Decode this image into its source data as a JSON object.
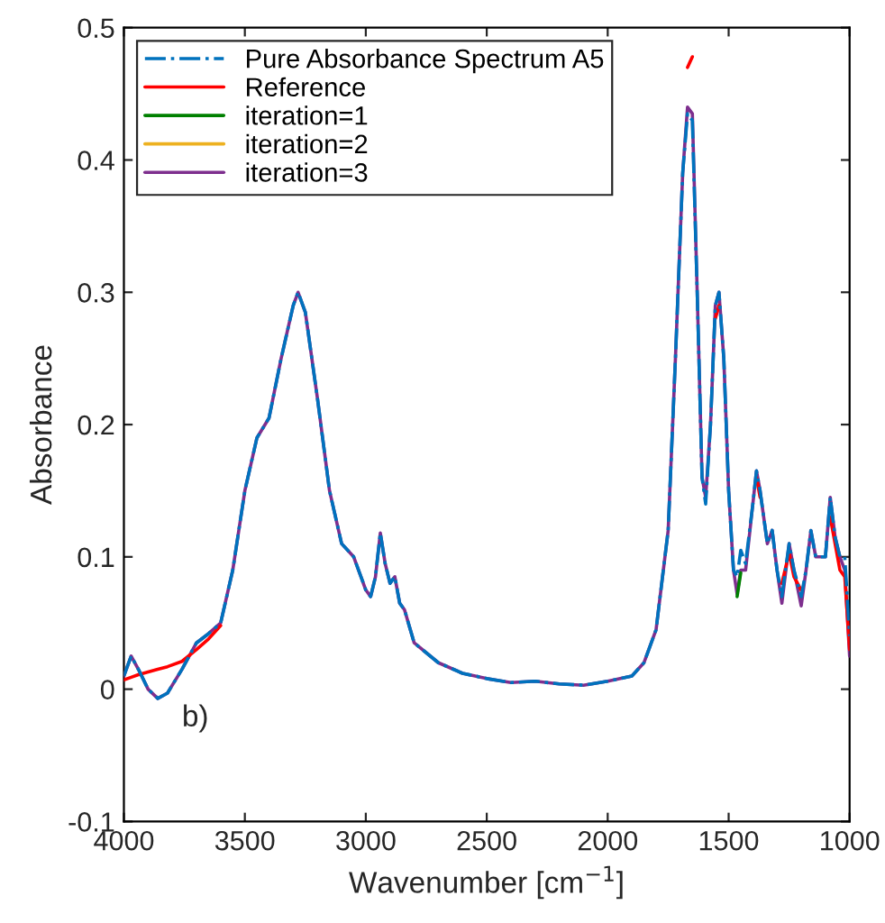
{
  "chart_data": {
    "type": "line",
    "xlabel": "Wavenumber [cm$^{−1}$]",
    "ylabel": "Absorbance",
    "annotations": [
      "b)"
    ],
    "xlim": [
      4000,
      1000
    ],
    "xticks": [
      4000,
      3500,
      3000,
      2500,
      2000,
      1500,
      1000
    ],
    "ylim": [
      -0.1,
      0.5
    ],
    "yticks": [
      -0.1,
      0,
      0.1,
      0.2,
      0.3,
      0.4,
      0.5
    ],
    "grid": false,
    "legend": "top left",
    "marker": "none",
    "x": [
      4000,
      3970,
      3940,
      3900,
      3860,
      3820,
      3760,
      3700,
      3650,
      3600,
      3550,
      3500,
      3450,
      3400,
      3350,
      3300,
      3280,
      3250,
      3200,
      3150,
      3100,
      3050,
      3000,
      2980,
      2960,
      2940,
      2920,
      2900,
      2880,
      2860,
      2840,
      2800,
      2700,
      2600,
      2500,
      2400,
      2300,
      2200,
      2100,
      2000,
      1900,
      1850,
      1800,
      1750,
      1720,
      1690,
      1670,
      1650,
      1630,
      1610,
      1595,
      1575,
      1555,
      1540,
      1520,
      1500,
      1480,
      1465,
      1450,
      1430,
      1400,
      1385,
      1370,
      1340,
      1320,
      1300,
      1280,
      1250,
      1230,
      1200,
      1180,
      1160,
      1140,
      1100,
      1080,
      1060,
      1040,
      1020,
      1000
    ],
    "series": [
      {
        "name": "Pure Absorbance Spectrum A5",
        "color": "#0072bd",
        "line_style": "dashdot",
        "values": [
          0.01,
          0.025,
          0.015,
          0.0,
          -0.007,
          -0.003,
          0.015,
          0.035,
          0.042,
          0.05,
          0.09,
          0.15,
          0.19,
          0.205,
          0.25,
          0.29,
          0.3,
          0.285,
          0.22,
          0.15,
          0.11,
          0.1,
          0.075,
          0.07,
          0.085,
          0.118,
          0.095,
          0.08,
          0.085,
          0.065,
          0.06,
          0.035,
          0.02,
          0.012,
          0.008,
          0.005,
          0.006,
          0.004,
          0.003,
          0.006,
          0.01,
          0.02,
          0.045,
          0.12,
          0.25,
          0.39,
          0.435,
          0.43,
          0.3,
          0.16,
          0.14,
          0.2,
          0.29,
          0.3,
          0.25,
          0.15,
          0.09,
          0.085,
          0.105,
          0.095,
          0.14,
          0.165,
          0.15,
          0.11,
          0.12,
          0.09,
          0.07,
          0.11,
          0.09,
          0.07,
          0.09,
          0.12,
          0.1,
          0.1,
          0.145,
          0.115,
          0.1,
          0.1,
          0.04
        ]
      },
      {
        "name": "Reference",
        "color": "#ff0000",
        "line_style": "solid",
        "values": [
          0.007,
          0.009,
          0.011,
          0.013,
          0.015,
          0.017,
          0.021,
          0.03,
          0.038,
          0.048,
          null,
          null,
          null,
          null,
          null,
          null,
          null,
          null,
          null,
          null,
          null,
          null,
          null,
          null,
          null,
          null,
          null,
          null,
          null,
          null,
          null,
          null,
          null,
          null,
          null,
          null,
          null,
          null,
          null,
          null,
          null,
          null,
          null,
          null,
          null,
          null,
          0.47,
          0.478,
          null,
          null,
          null,
          null,
          0.28,
          0.29,
          null,
          null,
          null,
          null,
          null,
          null,
          null,
          0.16,
          0.145,
          null,
          null,
          null,
          0.08,
          0.103,
          0.085,
          0.075,
          null,
          null,
          null,
          null,
          0.13,
          0.11,
          0.09,
          0.085,
          0.03
        ]
      },
      {
        "name": "iteration=1",
        "color": "#008000",
        "line_style": "solid",
        "values": [
          null,
          null,
          null,
          null,
          null,
          null,
          null,
          null,
          null,
          null,
          null,
          null,
          null,
          null,
          null,
          null,
          null,
          null,
          null,
          null,
          null,
          null,
          null,
          null,
          null,
          null,
          null,
          null,
          null,
          null,
          null,
          null,
          null,
          null,
          null,
          null,
          null,
          null,
          null,
          null,
          null,
          null,
          null,
          null,
          null,
          null,
          null,
          null,
          null,
          null,
          null,
          null,
          null,
          null,
          null,
          null,
          null,
          0.07,
          0.088,
          null,
          null,
          null,
          null,
          null,
          null,
          null,
          null,
          null,
          null,
          null,
          null,
          null,
          null,
          null,
          null,
          null,
          null,
          null,
          null
        ]
      },
      {
        "name": "iteration=2",
        "color": "#edb120",
        "line_style": "solid",
        "values": [
          null,
          null,
          null,
          null,
          null,
          null,
          null,
          null,
          null,
          null,
          null,
          null,
          null,
          null,
          null,
          null,
          null,
          null,
          null,
          null,
          null,
          null,
          null,
          null,
          null,
          null,
          null,
          null,
          null,
          null,
          null,
          null,
          null,
          null,
          null,
          null,
          null,
          null,
          null,
          null,
          null,
          null,
          null,
          null,
          null,
          null,
          null,
          null,
          null,
          null,
          null,
          null,
          null,
          null,
          null,
          null,
          null,
          null,
          null,
          null,
          null,
          null,
          null,
          null,
          null,
          null,
          null,
          null,
          null,
          null,
          null,
          null,
          null,
          null,
          null,
          null,
          null,
          null,
          null
        ]
      },
      {
        "name": "iteration=3",
        "color": "#7e2f8e",
        "line_style": "solid",
        "values": [
          0.01,
          0.025,
          0.015,
          0.0,
          -0.007,
          -0.003,
          0.015,
          0.035,
          0.042,
          0.05,
          0.09,
          0.15,
          0.19,
          0.205,
          0.25,
          0.29,
          0.3,
          0.285,
          0.22,
          0.15,
          0.11,
          0.1,
          0.075,
          0.07,
          0.085,
          0.118,
          0.095,
          0.08,
          0.085,
          0.065,
          0.06,
          0.035,
          0.02,
          0.012,
          0.008,
          0.005,
          0.006,
          0.004,
          0.003,
          0.006,
          0.01,
          0.02,
          0.045,
          0.12,
          0.25,
          0.39,
          0.44,
          0.435,
          0.3,
          0.16,
          0.145,
          0.2,
          0.29,
          0.3,
          0.25,
          0.15,
          0.09,
          0.072,
          0.09,
          0.09,
          0.14,
          0.165,
          0.15,
          0.11,
          0.12,
          0.09,
          0.065,
          0.11,
          0.09,
          0.063,
          0.09,
          0.12,
          0.1,
          0.1,
          0.145,
          0.115,
          0.1,
          0.09,
          0.025
        ]
      }
    ]
  }
}
